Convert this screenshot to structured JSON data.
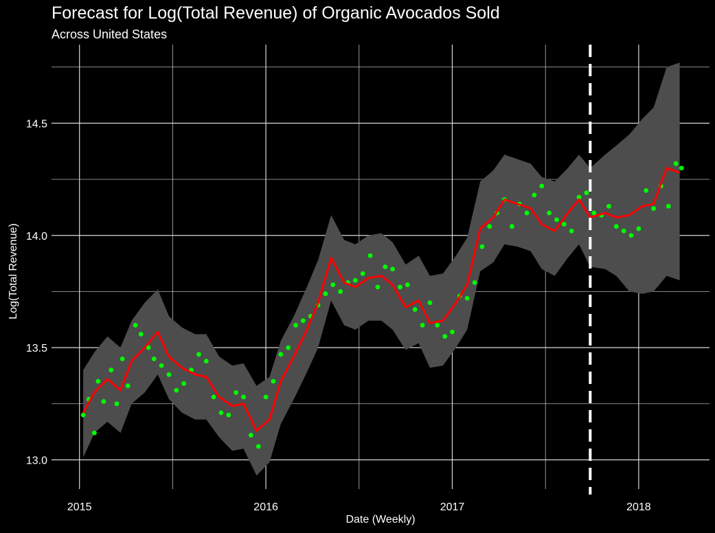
{
  "chart_data": {
    "type": "line",
    "title": "Forecast for Log(Total Revenue) of Organic Avocados Sold",
    "subtitle": "Across United States",
    "xlabel": "Date (Weekly)",
    "ylabel": "Log(Total Revenue)",
    "x_tick_labels": [
      "2015",
      "2016",
      "2017",
      "2018"
    ],
    "x_ticks": [
      2015,
      2016,
      2017,
      2018
    ],
    "y_tick_labels": [
      "13.0",
      "13.5",
      "14.0",
      "14.5"
    ],
    "y_ticks": [
      13.0,
      13.5,
      14.0,
      14.5
    ],
    "xlim": [
      2014.85,
      2018.38
    ],
    "ylim": [
      12.87,
      14.85
    ],
    "forecast_start": 2017.74,
    "grid": true,
    "colors": {
      "background": "#000000",
      "grid": "#d9d9d9",
      "band": "#4d4d4d",
      "forecast_line": "#ff0000",
      "actual_points": "#00ff00",
      "cutoff_line": "#ffffff"
    },
    "series": [
      {
        "role": "forecast",
        "x": [
          2015.02,
          2015.08,
          2015.15,
          2015.22,
          2015.28,
          2015.35,
          2015.42,
          2015.48,
          2015.55,
          2015.62,
          2015.68,
          2015.75,
          2015.82,
          2015.88,
          2015.95,
          2016.02,
          2016.08,
          2016.15,
          2016.22,
          2016.28,
          2016.35,
          2016.42,
          2016.48,
          2016.55,
          2016.62,
          2016.68,
          2016.75,
          2016.82,
          2016.88,
          2016.95,
          2017.02,
          2017.08,
          2017.15,
          2017.22,
          2017.28,
          2017.35,
          2017.42,
          2017.48,
          2017.55,
          2017.62,
          2017.68,
          2017.74,
          2017.82,
          2017.88,
          2017.95,
          2018.02,
          2018.08,
          2018.15,
          2018.22
        ],
        "y": [
          13.21,
          13.3,
          13.36,
          13.31,
          13.44,
          13.5,
          13.57,
          13.46,
          13.41,
          13.38,
          13.37,
          13.28,
          13.24,
          13.25,
          13.13,
          13.18,
          13.35,
          13.46,
          13.58,
          13.7,
          13.9,
          13.79,
          13.77,
          13.81,
          13.82,
          13.78,
          13.68,
          13.71,
          13.61,
          13.62,
          13.7,
          13.78,
          14.03,
          14.08,
          14.16,
          14.14,
          14.12,
          14.05,
          14.02,
          14.1,
          14.16,
          14.08,
          14.1,
          14.08,
          14.09,
          14.13,
          14.14,
          14.3,
          14.28
        ]
      },
      {
        "role": "upper",
        "x": [
          2015.02,
          2015.08,
          2015.15,
          2015.22,
          2015.28,
          2015.35,
          2015.42,
          2015.48,
          2015.55,
          2015.62,
          2015.68,
          2015.75,
          2015.82,
          2015.88,
          2015.95,
          2016.02,
          2016.08,
          2016.15,
          2016.22,
          2016.28,
          2016.35,
          2016.42,
          2016.48,
          2016.55,
          2016.62,
          2016.68,
          2016.75,
          2016.82,
          2016.88,
          2016.95,
          2017.02,
          2017.08,
          2017.15,
          2017.22,
          2017.28,
          2017.35,
          2017.42,
          2017.48,
          2017.55,
          2017.62,
          2017.68,
          2017.74,
          2017.82,
          2017.88,
          2017.95,
          2018.02,
          2018.08,
          2018.15,
          2018.22
        ],
        "y": [
          13.4,
          13.48,
          13.55,
          13.5,
          13.62,
          13.7,
          13.76,
          13.64,
          13.59,
          13.56,
          13.56,
          13.46,
          13.42,
          13.43,
          13.33,
          13.37,
          13.53,
          13.64,
          13.77,
          13.89,
          14.09,
          13.98,
          13.96,
          14.0,
          14.01,
          13.97,
          13.87,
          13.91,
          13.82,
          13.83,
          13.91,
          13.99,
          14.24,
          14.29,
          14.36,
          14.34,
          14.32,
          14.26,
          14.24,
          14.3,
          14.36,
          14.3,
          14.36,
          14.4,
          14.45,
          14.52,
          14.57,
          14.75,
          14.77
        ]
      },
      {
        "role": "lower",
        "x": [
          2015.02,
          2015.08,
          2015.15,
          2015.22,
          2015.28,
          2015.35,
          2015.42,
          2015.48,
          2015.55,
          2015.62,
          2015.68,
          2015.75,
          2015.82,
          2015.88,
          2015.95,
          2016.02,
          2016.08,
          2016.15,
          2016.22,
          2016.28,
          2016.35,
          2016.42,
          2016.48,
          2016.55,
          2016.62,
          2016.68,
          2016.75,
          2016.82,
          2016.88,
          2016.95,
          2017.02,
          2017.08,
          2017.15,
          2017.22,
          2017.28,
          2017.35,
          2017.42,
          2017.48,
          2017.55,
          2017.62,
          2017.68,
          2017.74,
          2017.82,
          2017.88,
          2017.95,
          2018.02,
          2018.08,
          2018.15,
          2018.22
        ],
        "y": [
          13.01,
          13.12,
          13.17,
          13.12,
          13.25,
          13.3,
          13.38,
          13.27,
          13.21,
          13.18,
          13.18,
          13.1,
          13.04,
          13.05,
          12.93,
          12.99,
          13.16,
          13.27,
          13.39,
          13.5,
          13.71,
          13.6,
          13.58,
          13.62,
          13.62,
          13.58,
          13.49,
          13.52,
          13.41,
          13.42,
          13.5,
          13.58,
          13.84,
          13.88,
          13.96,
          13.95,
          13.93,
          13.85,
          13.82,
          13.9,
          13.96,
          13.86,
          13.85,
          13.82,
          13.75,
          13.74,
          13.75,
          13.82,
          13.8
        ]
      },
      {
        "role": "actual",
        "x": [
          2015.02,
          2015.05,
          2015.08,
          2015.1,
          2015.13,
          2015.17,
          2015.2,
          2015.23,
          2015.26,
          2015.3,
          2015.33,
          2015.37,
          2015.4,
          2015.44,
          2015.48,
          2015.52,
          2015.56,
          2015.6,
          2015.64,
          2015.68,
          2015.72,
          2015.76,
          2015.8,
          2015.84,
          2015.88,
          2015.92,
          2015.96,
          2016.0,
          2016.04,
          2016.08,
          2016.12,
          2016.16,
          2016.2,
          2016.24,
          2016.28,
          2016.32,
          2016.36,
          2016.4,
          2016.44,
          2016.48,
          2016.52,
          2016.56,
          2016.6,
          2016.64,
          2016.68,
          2016.72,
          2016.76,
          2016.8,
          2016.84,
          2016.88,
          2016.92,
          2016.96,
          2017.0,
          2017.04,
          2017.08,
          2017.12,
          2017.16,
          2017.2,
          2017.24,
          2017.28,
          2017.32,
          2017.36,
          2017.4,
          2017.44,
          2017.48,
          2017.52,
          2017.56,
          2017.6,
          2017.64,
          2017.68,
          2017.72,
          2017.76,
          2017.8,
          2017.84,
          2017.88,
          2017.92,
          2017.96,
          2018.0,
          2018.04,
          2018.08,
          2018.12,
          2018.16,
          2018.2,
          2018.23
        ],
        "y": [
          13.2,
          13.27,
          13.12,
          13.35,
          13.26,
          13.4,
          13.25,
          13.45,
          13.33,
          13.6,
          13.56,
          13.5,
          13.45,
          13.42,
          13.38,
          13.31,
          13.34,
          13.4,
          13.47,
          13.44,
          13.28,
          13.21,
          13.2,
          13.3,
          13.28,
          13.11,
          13.06,
          13.28,
          13.35,
          13.47,
          13.5,
          13.6,
          13.62,
          13.64,
          13.69,
          13.74,
          13.78,
          13.75,
          13.79,
          13.8,
          13.83,
          13.91,
          13.77,
          13.86,
          13.85,
          13.77,
          13.78,
          13.67,
          13.6,
          13.7,
          13.6,
          13.55,
          13.57,
          13.73,
          13.72,
          13.79,
          13.95,
          14.04,
          14.1,
          14.16,
          14.04,
          14.14,
          14.1,
          14.18,
          14.22,
          14.1,
          14.07,
          14.05,
          14.02,
          14.17,
          14.19,
          14.1,
          14.09,
          14.13,
          14.04,
          14.02,
          14.0,
          14.03,
          14.2,
          14.12,
          14.22,
          14.13,
          14.32,
          14.3
        ]
      }
    ]
  }
}
